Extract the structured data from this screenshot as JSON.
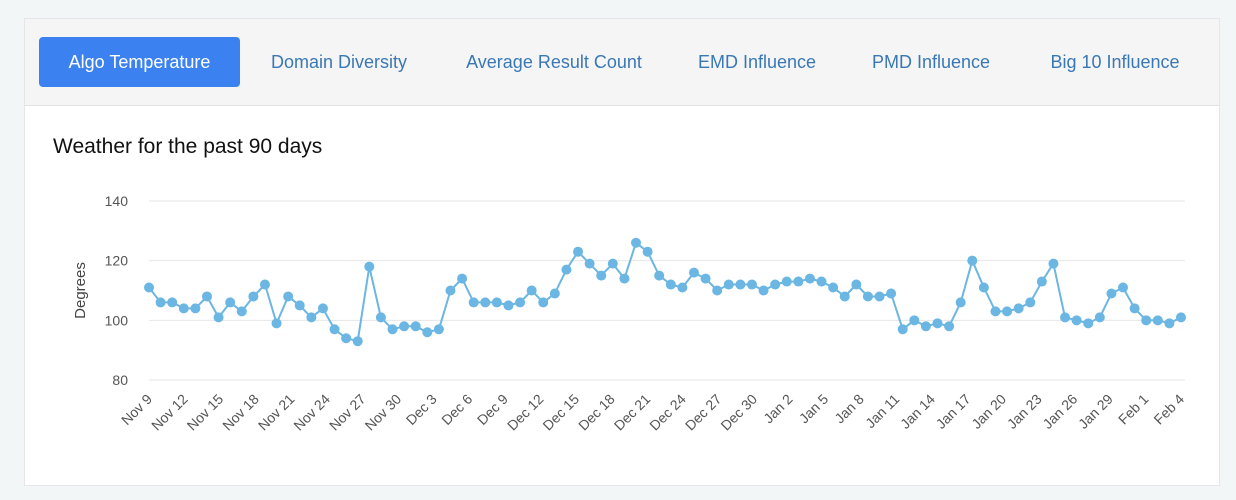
{
  "tabs": [
    {
      "label": "Algo Temperature",
      "active": true
    },
    {
      "label": "Domain Diversity",
      "active": false
    },
    {
      "label": "Average Result Count",
      "active": false
    },
    {
      "label": "EMD Influence",
      "active": false
    },
    {
      "label": "PMD Influence",
      "active": false
    },
    {
      "label": "Big 10 Influence",
      "active": false
    }
  ],
  "colors": {
    "accent": "#3b82f0",
    "series": "#6bb6e2",
    "tab_text": "#3a78b5"
  },
  "chart_data": {
    "type": "line",
    "title": "Weather for the past 90 days",
    "xlabel": "",
    "ylabel": "Degrees",
    "ylim": [
      80,
      140
    ],
    "yticks": [
      80,
      100,
      120,
      140
    ],
    "grid": true,
    "x_tick_labels": [
      "Nov 9",
      "Nov 12",
      "Nov 15",
      "Nov 18",
      "Nov 21",
      "Nov 24",
      "Nov 27",
      "Nov 30",
      "Dec 3",
      "Dec 6",
      "Dec 9",
      "Dec 12",
      "Dec 15",
      "Dec 18",
      "Dec 21",
      "Dec 24",
      "Dec 27",
      "Dec 30",
      "Jan 2",
      "Jan 5",
      "Jan 8",
      "Jan 11",
      "Jan 14",
      "Jan 17",
      "Jan 20",
      "Jan 23",
      "Jan 26",
      "Jan 29",
      "Feb 1",
      "Feb 4"
    ],
    "series": [
      {
        "name": "Algo Temperature",
        "values": [
          111,
          106,
          106,
          104,
          104,
          108,
          101,
          106,
          103,
          108,
          112,
          99,
          108,
          105,
          101,
          104,
          97,
          94,
          93,
          118,
          101,
          97,
          98,
          98,
          96,
          97,
          110,
          114,
          106,
          106,
          106,
          105,
          106,
          110,
          106,
          109,
          117,
          123,
          119,
          115,
          119,
          114,
          126,
          123,
          115,
          112,
          111,
          116,
          114,
          110,
          112,
          112,
          112,
          110,
          112,
          113,
          113,
          114,
          113,
          111,
          108,
          112,
          108,
          108,
          109,
          97,
          100,
          98,
          99,
          98,
          106,
          120,
          111,
          103,
          103,
          104,
          106,
          113,
          119,
          101,
          100,
          99,
          101,
          109,
          111,
          104,
          100,
          100,
          99,
          101
        ]
      }
    ]
  }
}
